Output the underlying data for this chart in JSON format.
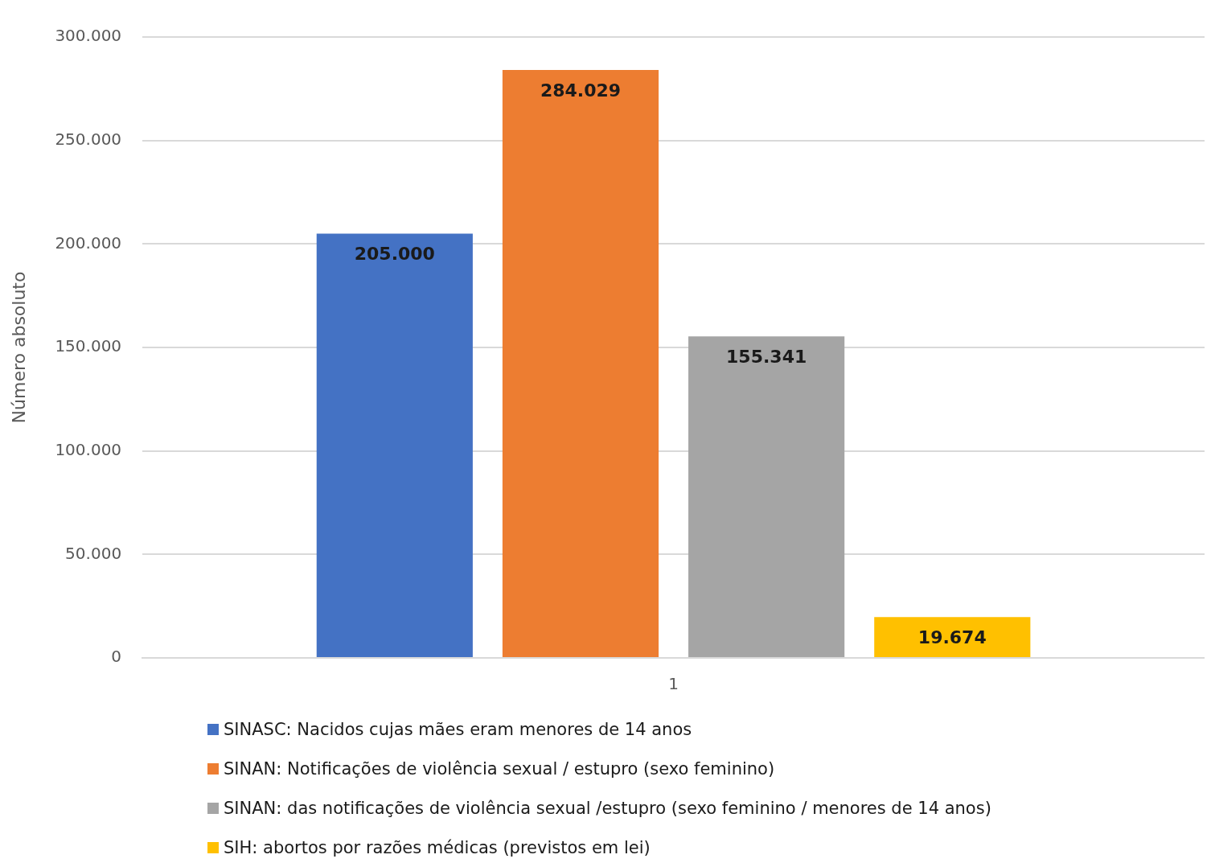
{
  "chart_data": {
    "type": "bar",
    "ylabel": "Número absoluto",
    "categories": [
      "1"
    ],
    "series": [
      {
        "name": "SINASC: Nacidos cujas mães eram menores de 14 anos",
        "color": "#4472c4",
        "values": [
          205000
        ],
        "value_labels": [
          "205.000"
        ]
      },
      {
        "name": "SINAN: Notificações de violência sexual / estupro (sexo feminino)",
        "color": "#ed7d31",
        "values": [
          284029
        ],
        "value_labels": [
          "284.029"
        ]
      },
      {
        "name": "SINAN: das notificações de violência sexual /estupro (sexo feminino / menores de 14 anos)",
        "color": "#a5a5a5",
        "values": [
          155341
        ],
        "value_labels": [
          "155.341"
        ]
      },
      {
        "name": "SIH: abortos por razões médicas (previstos em lei)",
        "color": "#ffc000",
        "values": [
          19674
        ],
        "value_labels": [
          "19.674"
        ]
      }
    ],
    "ylim": [
      0,
      300000
    ],
    "yticks": [
      {
        "value": 0,
        "label": "0"
      },
      {
        "value": 50000,
        "label": "50.000"
      },
      {
        "value": 100000,
        "label": "100.000"
      },
      {
        "value": 150000,
        "label": "150.000"
      },
      {
        "value": 200000,
        "label": "200.000"
      },
      {
        "value": 250000,
        "label": "250.000"
      },
      {
        "value": 300000,
        "label": "300.000"
      }
    ],
    "grid": "y",
    "legend": "bottom"
  }
}
